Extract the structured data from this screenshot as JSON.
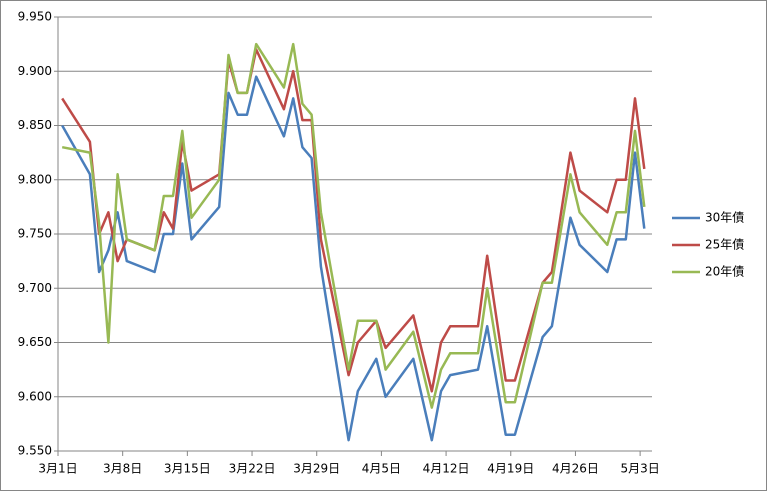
{
  "chart_data": {
    "type": "line",
    "x": [
      "3月1日",
      "3月4日",
      "3月5日",
      "3月6日",
      "3月7日",
      "3月8日",
      "3月11日",
      "3月12日",
      "3月13日",
      "3月14日",
      "3月15日",
      "3月18日",
      "3月19日",
      "3月20日",
      "3月21日",
      "3月22日",
      "3月25日",
      "3月26日",
      "3月27日",
      "3月28日",
      "3月29日",
      "4月1日",
      "4月2日",
      "4月4日",
      "4月5日",
      "4月8日",
      "4月10日",
      "4月11日",
      "4月12日",
      "4月15日",
      "4月16日",
      "4月18日",
      "4月19日",
      "4月22日",
      "4月23日",
      "4月25日",
      "4月26日",
      "4月29日",
      "4月30日",
      "5月1日",
      "5月2日",
      "5月3日"
    ],
    "series": [
      {
        "name": "30年債",
        "color": "#4a7ebb",
        "values": [
          9.85,
          9.805,
          9.715,
          9.735,
          9.77,
          9.725,
          9.715,
          9.75,
          9.75,
          9.815,
          9.745,
          9.775,
          9.88,
          9.86,
          9.86,
          9.895,
          9.84,
          9.875,
          9.83,
          9.82,
          9.72,
          9.56,
          9.605,
          9.635,
          9.6,
          9.635,
          9.56,
          9.605,
          9.62,
          9.625,
          9.665,
          9.565,
          9.565,
          9.655,
          9.665,
          9.765,
          9.74,
          9.715,
          9.745,
          9.745,
          9.825,
          9.755
        ]
      },
      {
        "name": "25年債",
        "color": "#be4b48",
        "values": [
          9.875,
          9.835,
          9.75,
          9.77,
          9.725,
          9.745,
          9.735,
          9.77,
          9.755,
          9.835,
          9.79,
          9.805,
          9.91,
          9.88,
          9.88,
          9.92,
          9.865,
          9.9,
          9.855,
          9.855,
          9.745,
          9.62,
          9.65,
          9.67,
          9.645,
          9.675,
          9.605,
          9.65,
          9.665,
          9.665,
          9.73,
          9.615,
          9.615,
          9.705,
          9.715,
          9.825,
          9.79,
          9.77,
          9.8,
          9.8,
          9.875,
          9.81
        ]
      },
      {
        "name": "20年債",
        "color": "#98b954",
        "values": [
          9.83,
          9.825,
          9.76,
          9.65,
          9.805,
          9.745,
          9.735,
          9.785,
          9.785,
          9.845,
          9.765,
          9.8,
          9.915,
          9.88,
          9.88,
          9.925,
          9.885,
          9.925,
          9.87,
          9.86,
          9.77,
          9.625,
          9.67,
          9.67,
          9.625,
          9.66,
          9.59,
          9.625,
          9.64,
          9.64,
          9.7,
          9.595,
          9.595,
          9.705,
          9.705,
          9.805,
          9.77,
          9.74,
          9.77,
          9.77,
          9.845,
          9.775
        ]
      }
    ],
    "xticks": [
      "3月1日",
      "3月8日",
      "3月15日",
      "3月22日",
      "3月29日",
      "4月5日",
      "4月12日",
      "4月19日",
      "4月26日",
      "5月3日"
    ],
    "ylim": [
      9.55,
      9.95
    ],
    "yticks": [
      {
        "value": 9.55,
        "label": "9.550"
      },
      {
        "value": 9.6,
        "label": "9.600"
      },
      {
        "value": 9.65,
        "label": "9.650"
      },
      {
        "value": 9.7,
        "label": "9.700"
      },
      {
        "value": 9.75,
        "label": "9.750"
      },
      {
        "value": 9.8,
        "label": "9.800"
      },
      {
        "value": 9.85,
        "label": "9.850"
      },
      {
        "value": 9.9,
        "label": "9.900"
      },
      {
        "value": 9.95,
        "label": "9.950"
      }
    ],
    "grid": true,
    "legend": "right"
  }
}
